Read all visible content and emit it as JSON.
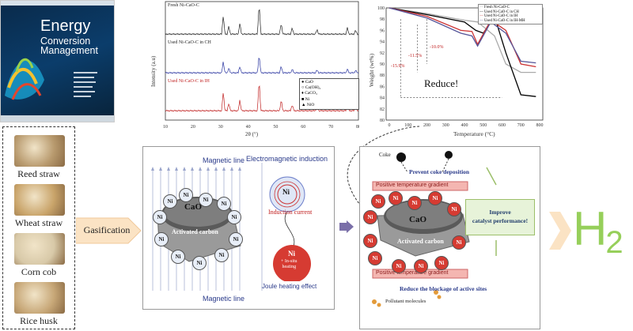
{
  "journal_cover": {
    "title_line1": "Energy",
    "title_line2": "Conversion",
    "title_line3": "Management"
  },
  "feedstocks": [
    {
      "label": "Reed  straw",
      "color": "#b89a6e"
    },
    {
      "label": "Wheat straw",
      "color": "#c9a46a"
    },
    {
      "label": "Corn cob",
      "color": "#d8c9a8"
    },
    {
      "label": "Rice husk",
      "color": "#c7a777"
    }
  ],
  "process": {
    "gasification_label": "Gasification",
    "product_label": "H",
    "product_sub": "2"
  },
  "xrd": {
    "traces": [
      "Fresh Ni-CaO-C",
      "Used Ni-CaO-C in CH",
      "Used Ni-CaO-C in IH"
    ],
    "ylabel": "Intensity (a.u)",
    "xlabel": "2θ (°)",
    "xticks": [
      "10",
      "20",
      "30",
      "40",
      "50",
      "60",
      "70",
      "80"
    ],
    "legend": [
      "CaO",
      "Ca(OH)₂",
      "CaCO₃",
      "Ni",
      "NiO"
    ]
  },
  "tga": {
    "ylabel": "Weight (wt%)",
    "xlabel": "Temperature (°C)",
    "yticks": [
      "100",
      "98",
      "96",
      "94",
      "92",
      "90",
      "88",
      "86",
      "84",
      "82",
      "80"
    ],
    "xticks": [
      "0",
      "100",
      "200",
      "300",
      "400",
      "500",
      "600",
      "700",
      "800"
    ],
    "legend": [
      "Fresh Ni-CaO-C",
      "Used Ni-CaO-C in CH",
      "Used Ni-CaO-C in IH",
      "Used Ni-CaO-C in IH-MH"
    ],
    "ann1": "-10.0%",
    "ann2": "-11.5%",
    "ann3": "-15.9%",
    "reduce": "Reduce!"
  },
  "mechanism": {
    "magnetic_line_top": "Magnetic line",
    "magnetic_line_bottom": "Magnetic line",
    "em_induction": "Electromagnetic induction",
    "induction_current": "Induction current",
    "insitu": "+ In-situ\nheating",
    "joule": "Joule  heating effect",
    "cao": "CaO",
    "activated_carbon": "Activated carbon",
    "ni": "Ni"
  },
  "benefits": {
    "coke": "Coke",
    "prevent": "Prevent coke deposition",
    "gradient_top": "Positive temperature gradient",
    "gradient_bottom": "Positive temperature gradient",
    "improve": "Improve\ncatalyst performance!",
    "reduce_blockage": "Reduce the blockage of active sites",
    "pollutant": "Pollutant molecules",
    "cao": "CaO",
    "activated_carbon": "Activated carbon"
  }
}
